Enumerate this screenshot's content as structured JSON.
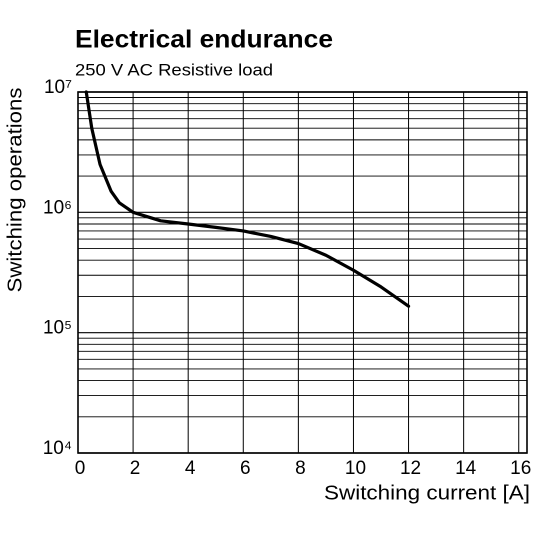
{
  "chart_data": {
    "type": "line",
    "title": "Electrical endurance",
    "subtitle": "250 V AC Resistive load",
    "x_label": "Switching current [A]",
    "y_label": "Switching operations",
    "x": [
      0.3,
      0.5,
      0.8,
      1.2,
      1.5,
      2,
      3,
      4,
      5,
      6,
      7,
      8,
      9,
      10,
      11,
      12
    ],
    "series": [
      {
        "name": "Resistive load",
        "color": "#000000",
        "values": [
          10000000,
          5000000,
          2500000,
          1500000,
          1200000,
          1000000,
          850000,
          800000,
          750000,
          700000,
          630000,
          550000,
          440000,
          330000,
          240000,
          166000
        ]
      }
    ],
    "xlim": [
      0,
      16.3
    ],
    "xticks": [
      0,
      2,
      4,
      6,
      8,
      10,
      12,
      14,
      16
    ],
    "ylim": [
      10000,
      10000000
    ],
    "log_y": true,
    "yticks": [
      {
        "value": 10000,
        "label": "10⁴"
      },
      {
        "value": 100000,
        "label": "10⁵"
      },
      {
        "value": 1000000,
        "label": "10⁶"
      },
      {
        "value": 10000000,
        "label": "10⁷"
      }
    ],
    "y_minor_ticks": [
      20000,
      30000,
      40000,
      50000,
      60000,
      70000,
      80000,
      90000,
      200000,
      300000,
      400000,
      500000,
      600000,
      700000,
      800000,
      900000,
      2000000,
      3000000,
      4000000,
      5000000,
      6000000,
      7000000,
      8000000,
      9000000
    ],
    "grid": true
  }
}
